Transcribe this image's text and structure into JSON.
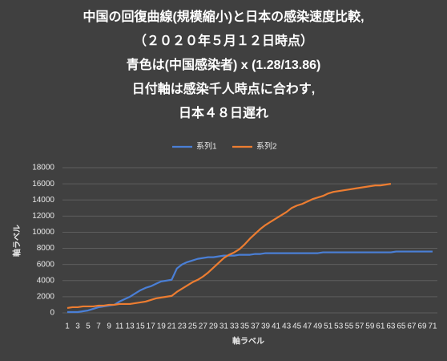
{
  "chart_data": {
    "type": "line",
    "title": [
      "中国の回復曲線(規模縮小)と日本の感染速度比較,",
      "（２０２０年５月１２日時点）",
      "青色は(中国感染者) x (1.28/13.86)",
      "日付軸は感染千人時点に合わす,",
      "日本４８日遅れ"
    ],
    "xlabel": "軸ラベル",
    "ylabel": "軸ラベル",
    "categories": [
      1,
      null,
      3,
      null,
      5,
      null,
      7,
      null,
      9,
      null,
      11,
      null,
      13,
      null,
      15,
      null,
      17,
      null,
      19,
      null,
      21,
      null,
      23,
      null,
      25,
      null,
      27,
      null,
      29,
      null,
      31,
      null,
      33,
      null,
      35,
      null,
      37,
      null,
      39,
      null,
      41,
      null,
      43,
      null,
      45,
      null,
      47,
      null,
      49,
      null,
      51,
      null,
      53,
      null,
      55,
      null,
      57,
      null,
      59,
      null,
      61,
      null,
      63,
      null,
      65,
      null,
      67,
      null,
      69,
      null,
      71
    ],
    "series": [
      {
        "name": "系列1",
        "color": "#4a7fd6",
        "values": [
          100,
          100,
          100,
          200,
          300,
          500,
          700,
          800,
          900,
          1000,
          1400,
          1700,
          2000,
          2400,
          2800,
          3100,
          3300,
          3600,
          3900,
          4000,
          4100,
          5500,
          6000,
          6300,
          6500,
          6700,
          6800,
          6900,
          6900,
          7000,
          7100,
          7100,
          7100,
          7200,
          7200,
          7200,
          7300,
          7300,
          7400,
          7400,
          7400,
          7400,
          7400,
          7400,
          7400,
          7400,
          7400,
          7400,
          7400,
          7500,
          7500,
          7500,
          7500,
          7500,
          7500,
          7500,
          7500,
          7500,
          7500,
          7500,
          7500,
          7500,
          7500,
          7600,
          7600,
          7600,
          7600,
          7600,
          7600,
          7600,
          7600
        ]
      },
      {
        "name": "系列2",
        "color": "#ed7d31",
        "values": [
          600,
          700,
          700,
          800,
          800,
          800,
          900,
          900,
          1000,
          1000,
          1100,
          1100,
          1100,
          1200,
          1300,
          1400,
          1600,
          1800,
          1900,
          2000,
          2100,
          2600,
          3000,
          3400,
          3800,
          4100,
          4500,
          5000,
          5600,
          6200,
          6800,
          7200,
          7500,
          7900,
          8500,
          9200,
          9800,
          10400,
          10900,
          11300,
          11700,
          12100,
          12500,
          13000,
          13300,
          13500,
          13800,
          14100,
          14300,
          14500,
          14800,
          15000,
          15100,
          15200,
          15300,
          15400,
          15500,
          15600,
          15700,
          15800,
          15800,
          15900,
          16000,
          null,
          null,
          null,
          null,
          null,
          null,
          null,
          null
        ]
      }
    ],
    "ylim": [
      0,
      18000
    ],
    "yticks": [
      0,
      2000,
      4000,
      6000,
      8000,
      10000,
      12000,
      14000,
      16000,
      18000
    ],
    "grid": true,
    "legend": "top"
  }
}
